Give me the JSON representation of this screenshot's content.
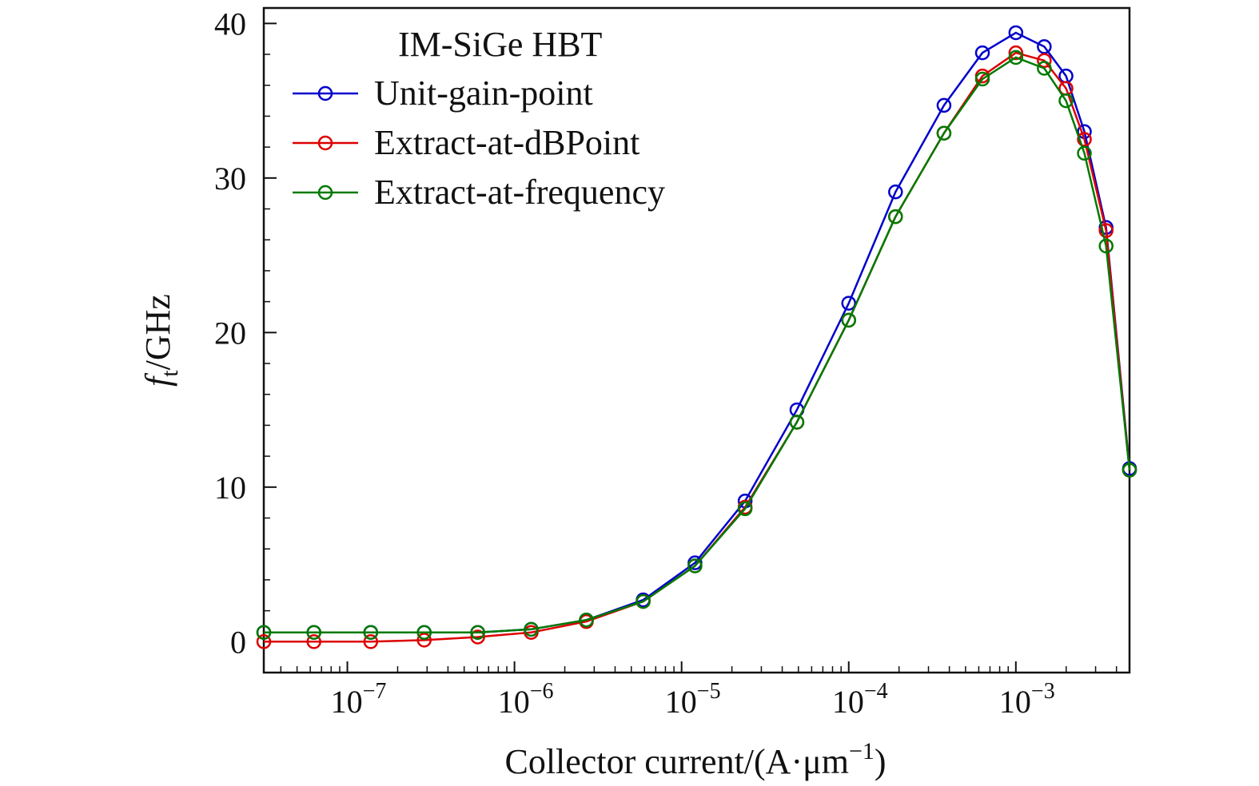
{
  "chart_data": {
    "type": "line",
    "title": "",
    "legend_title": "IM-SiGe HBT",
    "legend_position": "top-left",
    "xlabel": "Collector current/(A·μm⁻¹)",
    "xlabel_parts": {
      "main": "Collector current/(A·μm",
      "exp": "−1",
      "close": ")"
    },
    "ylabel": "f_t/GHz",
    "ylabel_parts": {
      "f": "f",
      "sub": "t",
      "rest": "/GHz"
    },
    "xscale": "log",
    "xlim_log10": [
      -7.5,
      -2.32
    ],
    "ylim": [
      -2,
      41
    ],
    "yticks": [
      0,
      10,
      20,
      30,
      40
    ],
    "xticks_exp": [
      -7,
      -6,
      -5,
      -4,
      -3
    ],
    "xtick_labels": [
      {
        "base": "10",
        "exp": "−7"
      },
      {
        "base": "10",
        "exp": "−6"
      },
      {
        "base": "10",
        "exp": "−5"
      },
      {
        "base": "10",
        "exp": "−4"
      },
      {
        "base": "10",
        "exp": "−3"
      }
    ],
    "x_log10": [
      -7.5,
      -7.2,
      -6.86,
      -6.54,
      -6.22,
      -5.9,
      -5.57,
      -5.23,
      -4.92,
      -4.62,
      -4.31,
      -4.0,
      -3.72,
      -3.43,
      -3.2,
      -3.0,
      -2.83,
      -2.7,
      -2.59,
      -2.46,
      -2.32
    ],
    "series": [
      {
        "name": "Unit-gain-point",
        "color": "#0000cc",
        "values": [
          0.6,
          0.6,
          0.6,
          0.6,
          0.6,
          0.8,
          1.4,
          2.7,
          5.1,
          9.1,
          15.0,
          21.9,
          29.1,
          34.7,
          38.1,
          39.4,
          38.5,
          36.6,
          33.0,
          26.8,
          11.2
        ]
      },
      {
        "name": "Extract-at-dBPoint",
        "color": "#dd0000",
        "values": [
          0.0,
          0.0,
          0.0,
          0.1,
          0.3,
          0.6,
          1.3,
          2.6,
          4.9,
          8.7,
          14.2,
          20.8,
          27.5,
          32.9,
          36.6,
          38.1,
          37.6,
          35.8,
          32.5,
          26.6,
          11.1
        ]
      },
      {
        "name": "Extract-at-frequency",
        "color": "#007a00",
        "values": [
          0.6,
          0.6,
          0.6,
          0.6,
          0.6,
          0.8,
          1.4,
          2.6,
          4.9,
          8.6,
          14.2,
          20.8,
          27.5,
          32.9,
          36.4,
          37.8,
          37.1,
          35.0,
          31.6,
          25.6,
          11.1
        ]
      }
    ]
  }
}
